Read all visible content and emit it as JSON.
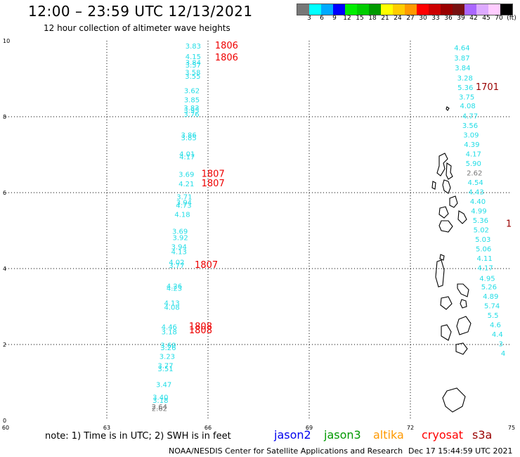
{
  "header": {
    "title": "12:00 – 23:59 UTC 12/13/2021",
    "subtitle": "12 hour collection of altimeter wave heights"
  },
  "colorbar": {
    "colors": [
      "#777777",
      "#00ffff",
      "#00aaff",
      "#0000ff",
      "#00ee00",
      "#00cc00",
      "#009900",
      "#ffff00",
      "#ffcc00",
      "#ff9900",
      "#ff0000",
      "#cc0000",
      "#990000",
      "#771111",
      "#aa66ff",
      "#ddaaff",
      "#ffccff",
      "#000000"
    ],
    "labels": [
      "3",
      "6",
      "9",
      "12",
      "15",
      "18",
      "21",
      "24",
      "27",
      "30",
      "33",
      "36",
      "39",
      "42",
      "45",
      "70",
      "(ft)"
    ]
  },
  "axes": {
    "x_ticks": [
      "60",
      "63",
      "66",
      "69",
      "72",
      "75"
    ],
    "y_ticks": [
      "10",
      "8",
      "6",
      "4",
      "2",
      "0"
    ]
  },
  "track1": {
    "swh": [
      {
        "v": "3.83",
        "lon": 65.56,
        "lat": 9.8
      },
      {
        "v": "4.15",
        "lon": 65.56,
        "lat": 9.52
      },
      {
        "v": "3.84",
        "lon": 65.56,
        "lat": 9.36
      },
      {
        "v": "3.57",
        "lon": 65.56,
        "lat": 9.3
      },
      {
        "v": "3.58",
        "lon": 65.55,
        "lat": 9.1
      },
      {
        "v": "3.55",
        "lon": 65.55,
        "lat": 9.0
      },
      {
        "v": "3.62",
        "lon": 65.52,
        "lat": 8.62
      },
      {
        "v": "3.85",
        "lon": 65.52,
        "lat": 8.38
      },
      {
        "v": "3.83",
        "lon": 65.51,
        "lat": 8.17
      },
      {
        "v": "3.95",
        "lon": 65.51,
        "lat": 8.1
      },
      {
        "v": "3.76",
        "lon": 65.51,
        "lat": 8.0
      },
      {
        "v": "3.86",
        "lon": 65.43,
        "lat": 7.45
      },
      {
        "v": "3.85",
        "lon": 65.43,
        "lat": 7.38
      },
      {
        "v": "4.01",
        "lon": 65.38,
        "lat": 6.95
      },
      {
        "v": "4.17",
        "lon": 65.38,
        "lat": 6.88
      },
      {
        "v": "3.69",
        "lon": 65.36,
        "lat": 6.42
      },
      {
        "v": "4.21",
        "lon": 65.36,
        "lat": 6.17
      },
      {
        "v": "3.71",
        "lon": 65.3,
        "lat": 5.82
      },
      {
        "v": "3.94",
        "lon": 65.29,
        "lat": 5.68
      },
      {
        "v": "4.73",
        "lon": 65.28,
        "lat": 5.6
      },
      {
        "v": "4.18",
        "lon": 65.24,
        "lat": 5.36
      },
      {
        "v": "3.69",
        "lon": 65.17,
        "lat": 4.92
      },
      {
        "v": "3.92",
        "lon": 65.18,
        "lat": 4.75
      },
      {
        "v": "3.94",
        "lon": 65.14,
        "lat": 4.51
      },
      {
        "v": "4.13",
        "lon": 65.14,
        "lat": 4.38
      },
      {
        "v": "4.02",
        "lon": 65.07,
        "lat": 4.1
      },
      {
        "v": "3.77",
        "lon": 65.07,
        "lat": 4.02
      },
      {
        "v": "4.26",
        "lon": 65.0,
        "lat": 3.47
      },
      {
        "v": "4.23",
        "lon": 65.0,
        "lat": 3.42
      },
      {
        "v": "4.13",
        "lon": 64.93,
        "lat": 3.03
      },
      {
        "v": "4.08",
        "lon": 64.93,
        "lat": 2.92
      },
      {
        "v": "4.46",
        "lon": 64.85,
        "lat": 2.4
      },
      {
        "v": "3.18",
        "lon": 64.85,
        "lat": 2.27
      },
      {
        "v": "3.60",
        "lon": 64.82,
        "lat": 1.92
      },
      {
        "v": "3.26",
        "lon": 64.82,
        "lat": 1.85
      },
      {
        "v": "3.23",
        "lon": 64.79,
        "lat": 1.62
      },
      {
        "v": "3.77",
        "lon": 64.74,
        "lat": 1.38
      },
      {
        "v": "3.51",
        "lon": 64.74,
        "lat": 1.3
      },
      {
        "v": "3.47",
        "lon": 64.69,
        "lat": 0.88
      },
      {
        "v": "3.40",
        "lon": 64.59,
        "lat": 0.55
      },
      {
        "v": "3.18",
        "lon": 64.59,
        "lat": 0.46
      },
      {
        "v": "2.64",
        "lon": 64.56,
        "lat": 0.3
      },
      {
        "v": "2.62",
        "lon": 64.56,
        "lat": 0.25
      }
    ],
    "times": [
      {
        "v": "1806",
        "lon": 66.55,
        "lat": 9.8
      },
      {
        "v": "1806",
        "lon": 66.55,
        "lat": 9.48
      },
      {
        "v": "1807",
        "lon": 66.15,
        "lat": 6.42
      },
      {
        "v": "1807",
        "lon": 66.15,
        "lat": 6.17
      },
      {
        "v": "1807",
        "lon": 65.95,
        "lat": 4.02
      },
      {
        "v": "1808",
        "lon": 65.78,
        "lat": 2.4
      },
      {
        "v": "1808",
        "lon": 65.78,
        "lat": 2.3
      }
    ]
  },
  "track2": {
    "swh": [
      {
        "v": "4.64",
        "lon": 73.53,
        "lat": 9.75
      },
      {
        "v": "3.87",
        "lon": 73.53,
        "lat": 9.48
      },
      {
        "v": "3.84",
        "lon": 73.55,
        "lat": 9.22
      },
      {
        "v": "3.28",
        "lon": 73.62,
        "lat": 8.95
      },
      {
        "v": "5.36",
        "lon": 73.63,
        "lat": 8.7
      },
      {
        "v": "3.75",
        "lon": 73.67,
        "lat": 8.45
      },
      {
        "v": "4.08",
        "lon": 73.7,
        "lat": 8.22
      },
      {
        "v": "4.77",
        "lon": 73.77,
        "lat": 7.95
      },
      {
        "v": "3.56",
        "lon": 73.77,
        "lat": 7.7
      },
      {
        "v": "3.09",
        "lon": 73.8,
        "lat": 7.45
      },
      {
        "v": "4.39",
        "lon": 73.82,
        "lat": 7.2
      },
      {
        "v": "4.17",
        "lon": 73.87,
        "lat": 6.95
      },
      {
        "v": "5.90",
        "lon": 73.87,
        "lat": 6.7
      },
      {
        "v": "2.62",
        "lon": 73.9,
        "lat": 6.45
      },
      {
        "v": "4.54",
        "lon": 73.93,
        "lat": 6.2
      },
      {
        "v": "4.43",
        "lon": 73.95,
        "lat": 5.95
      },
      {
        "v": "4.40",
        "lon": 74.0,
        "lat": 5.7
      },
      {
        "v": "4.99",
        "lon": 74.03,
        "lat": 5.45
      },
      {
        "v": "5.36",
        "lon": 74.08,
        "lat": 5.2
      },
      {
        "v": "5.02",
        "lon": 74.1,
        "lat": 4.95
      },
      {
        "v": "5.03",
        "lon": 74.15,
        "lat": 4.7
      },
      {
        "v": "5.06",
        "lon": 74.17,
        "lat": 4.45
      },
      {
        "v": "4.11",
        "lon": 74.2,
        "lat": 4.2
      },
      {
        "v": "4.17",
        "lon": 74.22,
        "lat": 3.95
      },
      {
        "v": "4.95",
        "lon": 74.28,
        "lat": 3.68
      },
      {
        "v": "5.26",
        "lon": 74.33,
        "lat": 3.45
      },
      {
        "v": "4.89",
        "lon": 74.38,
        "lat": 3.2
      },
      {
        "v": "5.74",
        "lon": 74.42,
        "lat": 2.95
      },
      {
        "v": "5.5",
        "lon": 74.45,
        "lat": 2.7
      },
      {
        "v": "4.6",
        "lon": 74.52,
        "lat": 2.45
      },
      {
        "v": "4.4",
        "lon": 74.58,
        "lat": 2.2
      },
      {
        "v": "3",
        "lon": 74.68,
        "lat": 1.95
      },
      {
        "v": "4",
        "lon": 74.75,
        "lat": 1.7
      }
    ],
    "times": [
      {
        "v": "1701",
        "lon": 74.28,
        "lat": 8.7
      },
      {
        "v": "1",
        "lon": 74.92,
        "lat": 5.1
      }
    ]
  },
  "footer": {
    "note": "note:  1) Time is in UTC;  2) SWH is in feet",
    "satellites": [
      {
        "name": "jason2",
        "color": "#0000ee"
      },
      {
        "name": "jason3",
        "color": "#009900"
      },
      {
        "name": "altika",
        "color": "#ff9900"
      },
      {
        "name": "cryosat",
        "color": "#ff0000"
      },
      {
        "name": "s3a",
        "color": "#990000"
      }
    ],
    "credit": "NOAA/NESDIS Center for Satellite Applications and Research",
    "timestamp": "Dec 17 15:44:59 UTC 2021"
  }
}
